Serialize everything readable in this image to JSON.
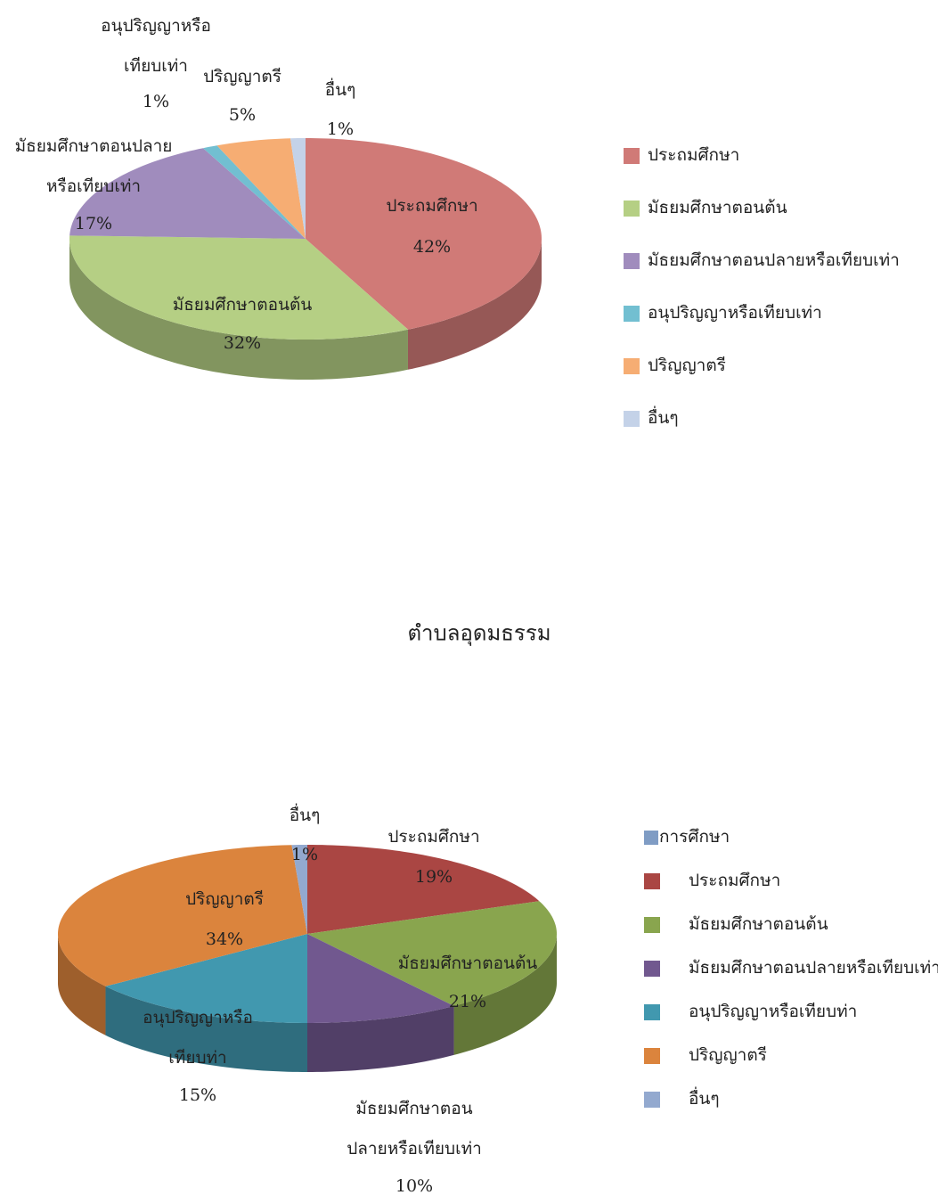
{
  "chart_data": [
    {
      "type": "pie",
      "categories": [
        "ประถมศึกษา",
        "มัธยมศึกษาตอนต้น",
        "มัธยมศึกษาตอนปลายหรือเทียบเท่า",
        "อนุปริญญาหรือเทียบเท่า",
        "ปริญญาตรี",
        "อื่นๆ"
      ],
      "values": [
        42,
        32,
        17,
        1,
        5,
        1
      ],
      "value_labels": [
        "42%",
        "32%",
        "17%",
        "1%",
        "5%",
        "1%"
      ],
      "slice_labels": [
        [
          "ประถมศึกษา"
        ],
        [
          "มัธยมศึกษาตอนต้น"
        ],
        [
          "มัธยมศึกษาตอนปลาย",
          "หรือเทียบเท่า"
        ],
        [
          "อนุปริญญาหรือ",
          "เทียบเท่า"
        ],
        [
          "ปริญญาตรี"
        ],
        [
          "อื่นๆ"
        ]
      ],
      "colors": [
        "#d07a77",
        "#b5cf84",
        "#a08cbd",
        "#72bfd1",
        "#f6ad73",
        "#c4d2e8"
      ]
    },
    {
      "type": "pie",
      "title": "ตำบลอุดมธรรม",
      "series_name": "การศึกษา",
      "series_color": "#7f9cc4",
      "categories": [
        "ประถมศึกษา",
        "มัธยมศึกษาตอนต้น",
        "มัธยมศึกษาตอนปลายหรือเทียบเท่า",
        "อนุปริญญาหรือเทียบท่า",
        "ปริญญาตรี",
        "อื่นๆ"
      ],
      "values": [
        19,
        21,
        10,
        15,
        34,
        1
      ],
      "value_labels": [
        "19%",
        "21%",
        "10%",
        "15%",
        "34%",
        "1%"
      ],
      "slice_labels": [
        [
          "ประถมศึกษา"
        ],
        [
          "มัธยมศึกษาตอนต้น"
        ],
        [
          "มัธยมศึกษาตอน",
          "ปลายหรือเทียบเท่า"
        ],
        [
          "อนุปริญญาหรือ",
          "เทียบท่า"
        ],
        [
          "ปริญญาตรี"
        ],
        [
          "อื่นๆ"
        ]
      ],
      "colors": [
        "#aa4643",
        "#89a54e",
        "#71588f",
        "#4198af",
        "#db843d",
        "#93a9cf"
      ]
    }
  ]
}
